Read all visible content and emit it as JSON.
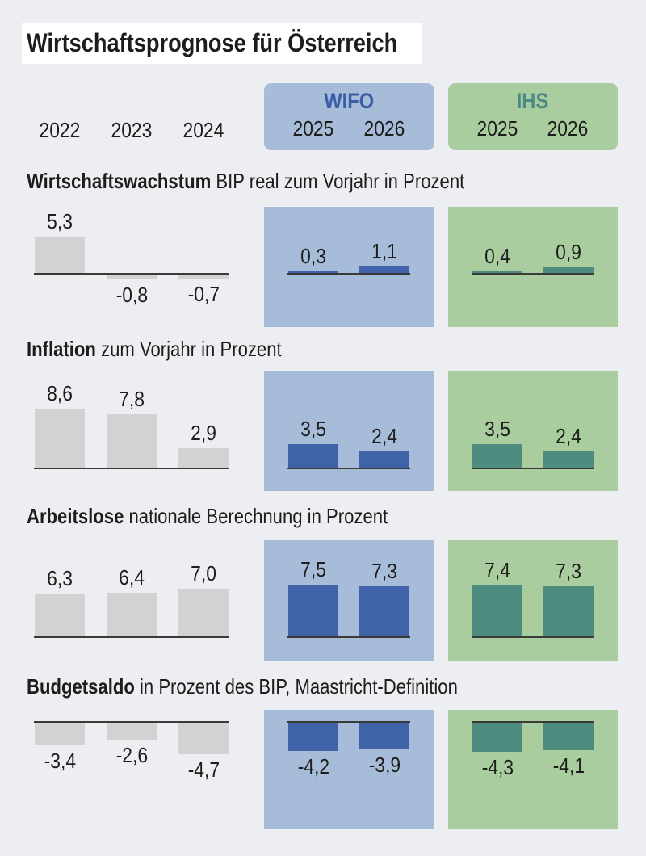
{
  "title": "Wirtschaftsprognose für Österreich",
  "header": {
    "historical_years": [
      "2022",
      "2023",
      "2024"
    ],
    "wifo": {
      "label": "WIFO",
      "years": [
        "2025",
        "2026"
      ]
    },
    "ihs": {
      "label": "IHS",
      "years": [
        "2025",
        "2026"
      ]
    }
  },
  "colors": {
    "page_bg": "#edeef2",
    "title_bg": "#ffffff",
    "text": "#1d1d1b",
    "historical_bar": "#d2d2d2",
    "wifo_panel_bg": "#a6bcd9",
    "wifo_bar": "#4063a7",
    "wifo_label": "#3a5ea6",
    "ihs_panel_bg": "#a9cd9e",
    "ihs_bar": "#4e8c80",
    "ihs_label": "#4b8b83",
    "baseline": "#3a3a38"
  },
  "chart_data": [
    {
      "type": "bar",
      "title_bold": "Wirtschaftswachstum",
      "title_rest": "BIP real zum Vorjahr in Prozent",
      "unit": "Prozent",
      "groups": [
        {
          "name": "historical",
          "categories": [
            "2022",
            "2023",
            "2024"
          ],
          "values": [
            5.3,
            -0.8,
            -0.7
          ],
          "labels": [
            "5,3",
            "-0,8",
            "-0,7"
          ]
        },
        {
          "name": "WIFO",
          "categories": [
            "2025",
            "2026"
          ],
          "values": [
            0.3,
            1.1
          ],
          "labels": [
            "0,3",
            "1,1"
          ]
        },
        {
          "name": "IHS",
          "categories": [
            "2025",
            "2026"
          ],
          "values": [
            0.4,
            0.9
          ],
          "labels": [
            "0,4",
            "0,9"
          ]
        }
      ]
    },
    {
      "type": "bar",
      "title_bold": "Inflation",
      "title_rest": "zum Vorjahr in Prozent",
      "unit": "Prozent",
      "groups": [
        {
          "name": "historical",
          "categories": [
            "2022",
            "2023",
            "2024"
          ],
          "values": [
            8.6,
            7.8,
            2.9
          ],
          "labels": [
            "8,6",
            "7,8",
            "2,9"
          ]
        },
        {
          "name": "WIFO",
          "categories": [
            "2025",
            "2026"
          ],
          "values": [
            3.5,
            2.4
          ],
          "labels": [
            "3,5",
            "2,4"
          ]
        },
        {
          "name": "IHS",
          "categories": [
            "2025",
            "2026"
          ],
          "values": [
            3.5,
            2.4
          ],
          "labels": [
            "3,5",
            "2,4"
          ]
        }
      ]
    },
    {
      "type": "bar",
      "title_bold": "Arbeitslose",
      "title_rest": "nationale Berechnung in Prozent",
      "unit": "Prozent",
      "groups": [
        {
          "name": "historical",
          "categories": [
            "2022",
            "2023",
            "2024"
          ],
          "values": [
            6.3,
            6.4,
            7.0
          ],
          "labels": [
            "6,3",
            "6,4",
            "7,0"
          ]
        },
        {
          "name": "WIFO",
          "categories": [
            "2025",
            "2026"
          ],
          "values": [
            7.5,
            7.3
          ],
          "labels": [
            "7,5",
            "7,3"
          ]
        },
        {
          "name": "IHS",
          "categories": [
            "2025",
            "2026"
          ],
          "values": [
            7.4,
            7.3
          ],
          "labels": [
            "7,4",
            "7,3"
          ]
        }
      ]
    },
    {
      "type": "bar",
      "title_bold": "Budgetsaldo",
      "title_rest": "in Prozent des BIP, Maastricht-Definition",
      "unit": "Prozent des BIP",
      "groups": [
        {
          "name": "historical",
          "categories": [
            "2022",
            "2023",
            "2024"
          ],
          "values": [
            -3.4,
            -2.6,
            -4.7
          ],
          "labels": [
            "-3,4",
            "-2,6",
            "-4,7"
          ]
        },
        {
          "name": "WIFO",
          "categories": [
            "2025",
            "2026"
          ],
          "values": [
            -4.2,
            -3.9
          ],
          "labels": [
            "-4,2",
            "-3,9"
          ]
        },
        {
          "name": "IHS",
          "categories": [
            "2025",
            "2026"
          ],
          "values": [
            -4.3,
            -4.1
          ],
          "labels": [
            "-4,3",
            "-4,1"
          ]
        }
      ]
    }
  ]
}
